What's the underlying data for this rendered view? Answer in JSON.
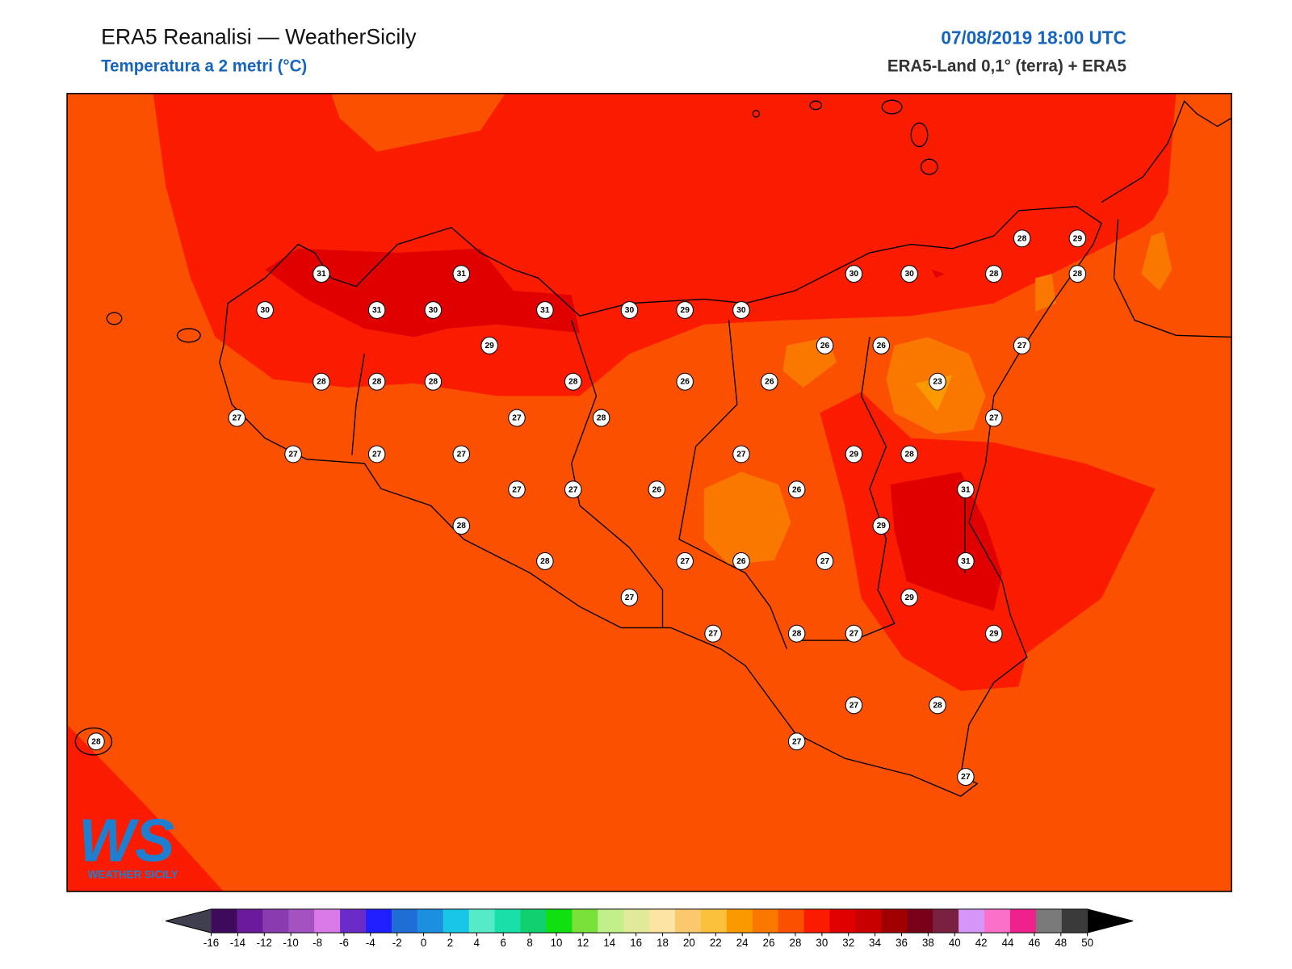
{
  "header": {
    "title": "ERA5 Reanalisi — WeatherSicily",
    "subtitle": "Temperatura a 2 metri (°C)",
    "date": "07/08/2019 18:00 UTC",
    "source": "ERA5-Land 0,1° (terra) + ERA5"
  },
  "stations": [
    28,
    29,
    31,
    31,
    30,
    30,
    28,
    28,
    30,
    31,
    30,
    31,
    30,
    29,
    30,
    29,
    26,
    26,
    27,
    28,
    28,
    28,
    28,
    26,
    26,
    23,
    27,
    27,
    28,
    27,
    27,
    27,
    27,
    27,
    29,
    28,
    27,
    27,
    26,
    26,
    31,
    28,
    29,
    28,
    27,
    26,
    27,
    31,
    27,
    29,
    27,
    28,
    27,
    29,
    27,
    28,
    28,
    27,
    27
  ],
  "colorbar": {
    "ticks": [
      -16,
      -14,
      -12,
      -10,
      -8,
      -6,
      -4,
      -2,
      0,
      2,
      4,
      6,
      8,
      10,
      12,
      14,
      16,
      18,
      20,
      22,
      24,
      26,
      28,
      30,
      32,
      34,
      36,
      38,
      40,
      42,
      44,
      46,
      48,
      50
    ],
    "colors": [
      "#3d0a5c",
      "#6a1a9a",
      "#8b3bb0",
      "#a452c2",
      "#d97ae8",
      "#6a2bc8",
      "#1f1fff",
      "#1f6ed6",
      "#1c8fe0",
      "#18c6e8",
      "#55ebc8",
      "#18e0a8",
      "#10d070",
      "#10e010",
      "#7ae03a",
      "#c2ef8a",
      "#e0ea98",
      "#fde4a4",
      "#fbc86e",
      "#fbc13c",
      "#fb9a00",
      "#fb7800",
      "#fb5000",
      "#fb1c00",
      "#e00000",
      "#c80000",
      "#a00000",
      "#780018",
      "#7a2040",
      "#d496f8",
      "#fb70c8",
      "#f0208c",
      "#7a7a7a",
      "#3a3a3a"
    ],
    "under": "#3f3f4f",
    "over": "#000000"
  },
  "logo": {
    "mark": "WS",
    "name": "WEATHER SICILY"
  }
}
